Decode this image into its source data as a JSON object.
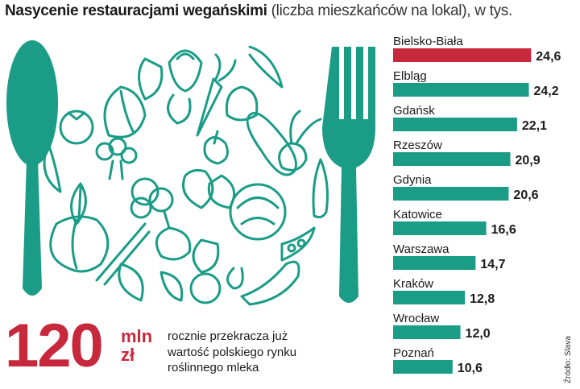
{
  "title": {
    "bold": "Nasycenie restauracjami wegańskimi",
    "light": " (liczba mieszkańców na lokal), w tys."
  },
  "chart_data": {
    "type": "bar",
    "orientation": "horizontal",
    "categories": [
      "Bielsko-Biała",
      "Elbląg",
      "Gdańsk",
      "Rzeszów",
      "Gdynia",
      "Katowice",
      "Warszawa",
      "Kraków",
      "Wrocław",
      "Poznań"
    ],
    "values": [
      24.6,
      24.2,
      22.1,
      20.9,
      20.6,
      16.6,
      14.7,
      12.8,
      12.0,
      10.6
    ],
    "value_labels": [
      "24,6",
      "24,2",
      "22,1",
      "20,9",
      "20,6",
      "16,6",
      "14,7",
      "12,8",
      "12,0",
      "10,6"
    ],
    "highlight_index": 0,
    "xlim": [
      0,
      27
    ],
    "grid": false,
    "colors": {
      "default": "#1a9c87",
      "highlight": "#c8283c"
    }
  },
  "callout": {
    "number": "120",
    "unit_line1": "mln",
    "unit_line2": "zł",
    "text_line1": "rocznie przekracza już",
    "text_line2": "wartość polskiego rynku",
    "text_line3": "roślinnego mleka"
  },
  "source": "Źródło: Slava",
  "illustration": {
    "icons": [
      "spoon-icon",
      "fork-icon",
      "vegetables-plate-icon"
    ],
    "color": "#1a9c87"
  }
}
